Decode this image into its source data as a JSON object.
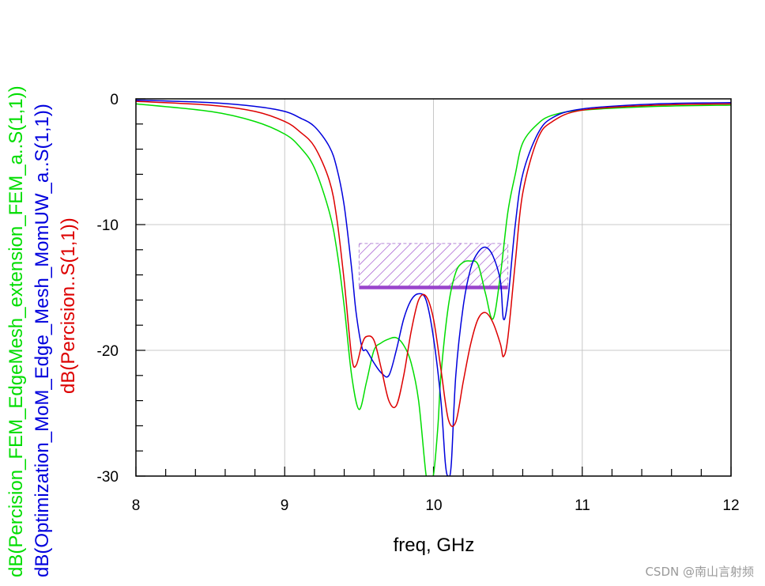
{
  "chart_data": {
    "type": "line",
    "xlabel": "freq, GHz",
    "xlim": [
      8,
      12
    ],
    "ylim": [
      -30,
      0
    ],
    "x_ticks": [
      "8",
      "9",
      "10",
      "11",
      "12"
    ],
    "y_ticks": [
      "0",
      "-10",
      "-20",
      "-30"
    ],
    "grid": true,
    "series": [
      {
        "name": "dB(Percision_FEM_EdgeMesh_extension_FEM_a..S(1,1))",
        "color": "#00dd00",
        "x": [
          8.0,
          8.5,
          8.8,
          9.0,
          9.1,
          9.2,
          9.3,
          9.35,
          9.4,
          9.45,
          9.5,
          9.55,
          9.6,
          9.65,
          9.7,
          9.75,
          9.8,
          9.85,
          9.9,
          9.95,
          9.97,
          10.0,
          10.03,
          10.05,
          10.1,
          10.15,
          10.2,
          10.25,
          10.3,
          10.35,
          10.4,
          10.45,
          10.5,
          10.55,
          10.6,
          10.7,
          10.8,
          11.0,
          11.5,
          12.0
        ],
        "y": [
          -0.4,
          -1.0,
          -1.8,
          -2.8,
          -3.8,
          -5.5,
          -9.0,
          -12.0,
          -16.5,
          -22.0,
          -24.7,
          -22.5,
          -20.0,
          -19.4,
          -19.1,
          -19.0,
          -19.6,
          -21.0,
          -24.0,
          -29.9,
          -30.0,
          -29.9,
          -26.0,
          -22.0,
          -16.5,
          -13.8,
          -13.0,
          -12.9,
          -13.2,
          -15.5,
          -17.5,
          -14.0,
          -9.0,
          -6.0,
          -3.5,
          -2.0,
          -1.3,
          -0.9,
          -0.6,
          -0.5
        ]
      },
      {
        "name": "dB(Optimization_MoM_Edge_Mesh_MomUW_a..S(1,1))",
        "color": "#0000dd",
        "x": [
          8.0,
          8.5,
          8.8,
          9.0,
          9.1,
          9.2,
          9.3,
          9.35,
          9.4,
          9.45,
          9.48,
          9.52,
          9.55,
          9.6,
          9.65,
          9.7,
          9.75,
          9.8,
          9.85,
          9.9,
          9.95,
          10.0,
          10.05,
          10.08,
          10.1,
          10.12,
          10.15,
          10.2,
          10.25,
          10.3,
          10.35,
          10.4,
          10.45,
          10.47,
          10.5,
          10.55,
          10.6,
          10.7,
          10.8,
          11.0,
          11.5,
          12.0
        ],
        "y": [
          -0.1,
          -0.3,
          -0.6,
          -1.0,
          -1.5,
          -2.2,
          -3.8,
          -5.5,
          -8.5,
          -13.5,
          -17.0,
          -19.8,
          -20.0,
          -21.0,
          -21.8,
          -22.0,
          -20.0,
          -17.5,
          -16.0,
          -15.5,
          -16.0,
          -19.0,
          -24.0,
          -29.0,
          -30.0,
          -29.0,
          -22.0,
          -16.5,
          -13.5,
          -12.2,
          -11.8,
          -12.5,
          -14.5,
          -17.5,
          -16.0,
          -10.0,
          -6.0,
          -2.8,
          -1.5,
          -0.8,
          -0.4,
          -0.3
        ]
      },
      {
        "name": "dB(Percision..S(1,1))",
        "color": "#dd0000",
        "x": [
          8.0,
          8.5,
          8.8,
          9.0,
          9.1,
          9.2,
          9.3,
          9.35,
          9.4,
          9.45,
          9.48,
          9.52,
          9.55,
          9.6,
          9.65,
          9.7,
          9.75,
          9.8,
          9.85,
          9.9,
          9.95,
          10.0,
          10.05,
          10.1,
          10.15,
          10.2,
          10.25,
          10.3,
          10.35,
          10.4,
          10.45,
          10.47,
          10.5,
          10.55,
          10.6,
          10.7,
          10.8,
          11.0,
          11.5,
          12.0
        ],
        "y": [
          -0.2,
          -0.5,
          -1.0,
          -1.8,
          -2.6,
          -3.8,
          -6.5,
          -9.5,
          -14.5,
          -20.5,
          -21.2,
          -19.5,
          -18.9,
          -19.2,
          -21.5,
          -24.0,
          -24.4,
          -22.0,
          -18.5,
          -16.0,
          -15.7,
          -17.5,
          -21.5,
          -25.5,
          -25.7,
          -22.5,
          -19.5,
          -17.5,
          -17.0,
          -17.8,
          -19.5,
          -20.5,
          -19.0,
          -13.0,
          -7.5,
          -3.2,
          -1.8,
          -0.9,
          -0.5,
          -0.4
        ]
      }
    ],
    "spec_mask": {
      "color": "#9944cc",
      "x": [
        9.5,
        10.5
      ],
      "y_line": -15,
      "y_top": -11.5
    }
  },
  "watermark": "CSDN @南山言射频"
}
